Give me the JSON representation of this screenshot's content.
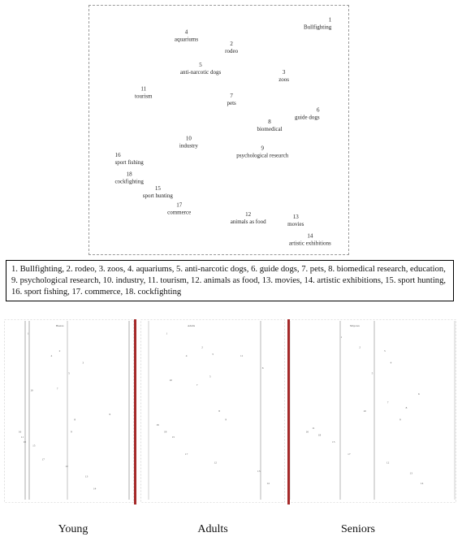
{
  "main_plot": {
    "points": [
      {
        "num": "1",
        "label": "Bullfighting",
        "x": 0.97,
        "y": 0.96
      },
      {
        "num": "2",
        "label": "rodeo",
        "x": 0.55,
        "y": 0.86
      },
      {
        "num": "3",
        "label": "zoos",
        "x": 0.77,
        "y": 0.74
      },
      {
        "num": "4",
        "label": "aquariums",
        "x": 0.36,
        "y": 0.91
      },
      {
        "num": "5",
        "label": "anti-narcotic dogs",
        "x": 0.42,
        "y": 0.77
      },
      {
        "num": "6",
        "label": "guide dogs",
        "x": 0.92,
        "y": 0.58
      },
      {
        "num": "7",
        "label": "pets",
        "x": 0.55,
        "y": 0.64
      },
      {
        "num": "8",
        "label": "biomedical",
        "x": 0.71,
        "y": 0.53
      },
      {
        "num": "9",
        "label": "psychological research",
        "x": 0.68,
        "y": 0.42
      },
      {
        "num": "10",
        "label": "industry",
        "x": 0.37,
        "y": 0.46
      },
      {
        "num": "11",
        "label": "tourism",
        "x": 0.18,
        "y": 0.67
      },
      {
        "num": "12",
        "label": "animals as food",
        "x": 0.62,
        "y": 0.14
      },
      {
        "num": "13",
        "label": "movies",
        "x": 0.82,
        "y": 0.13
      },
      {
        "num": "14",
        "label": "artistic exhibitions",
        "x": 0.88,
        "y": 0.05
      },
      {
        "num": "15",
        "label": "sport hunting",
        "x": 0.24,
        "y": 0.25
      },
      {
        "num": "16",
        "label": "sport fishing",
        "x": 0.06,
        "y": 0.39
      },
      {
        "num": "17",
        "label": "commerce",
        "x": 0.33,
        "y": 0.18
      },
      {
        "num": "18",
        "label": "cockfighting",
        "x": 0.12,
        "y": 0.31
      }
    ]
  },
  "legend_text": "1. Bullfighting, 2. rodeo, 3. zoos, 4. aquariums, 5. anti-narcotic dogs, 6. guide dogs, 7. pets, 8. biomedical research, education, 9. psychological research, 10. industry, 11. tourism, 12. animals as food, 13. movies, 14.  artistic exhibitions, 15. sport hunting, 16. sport fishing, 17. commerce, 18. cockfighting",
  "panels": [
    {
      "caption": "Young",
      "header": "Bueres",
      "points": [
        {
          "n": "1",
          "x": 0.15,
          "y": 0.95
        },
        {
          "n": "2",
          "x": 0.42,
          "y": 0.85
        },
        {
          "n": "3",
          "x": 0.62,
          "y": 0.78
        },
        {
          "n": "4",
          "x": 0.35,
          "y": 0.82
        },
        {
          "n": "5",
          "x": 0.5,
          "y": 0.72
        },
        {
          "n": "6",
          "x": 0.85,
          "y": 0.48
        },
        {
          "n": "7",
          "x": 0.4,
          "y": 0.63
        },
        {
          "n": "8",
          "x": 0.55,
          "y": 0.45
        },
        {
          "n": "9",
          "x": 0.52,
          "y": 0.38
        },
        {
          "n": "10",
          "x": 0.18,
          "y": 0.62
        },
        {
          "n": "11",
          "x": 0.1,
          "y": 0.35
        },
        {
          "n": "12",
          "x": 0.48,
          "y": 0.18
        },
        {
          "n": "13",
          "x": 0.65,
          "y": 0.12
        },
        {
          "n": "14",
          "x": 0.72,
          "y": 0.05
        },
        {
          "n": "15",
          "x": 0.2,
          "y": 0.3
        },
        {
          "n": "16",
          "x": 0.08,
          "y": 0.38
        },
        {
          "n": "17",
          "x": 0.28,
          "y": 0.22
        },
        {
          "n": "18",
          "x": 0.12,
          "y": 0.32
        }
      ]
    },
    {
      "caption": "Adults",
      "header": "Adults",
      "points": [
        {
          "n": "1",
          "x": 0.15,
          "y": 0.95
        },
        {
          "n": "2",
          "x": 0.42,
          "y": 0.87
        },
        {
          "n": "3",
          "x": 0.5,
          "y": 0.83
        },
        {
          "n": "4",
          "x": 0.3,
          "y": 0.82
        },
        {
          "n": "5",
          "x": 0.48,
          "y": 0.7
        },
        {
          "n": "6",
          "x": 0.88,
          "y": 0.75
        },
        {
          "n": "7",
          "x": 0.38,
          "y": 0.65
        },
        {
          "n": "8",
          "x": 0.55,
          "y": 0.5
        },
        {
          "n": "9",
          "x": 0.6,
          "y": 0.45
        },
        {
          "n": "10",
          "x": 0.18,
          "y": 0.68
        },
        {
          "n": "11",
          "x": 0.72,
          "y": 0.82
        },
        {
          "n": "12",
          "x": 0.52,
          "y": 0.2
        },
        {
          "n": "13",
          "x": 0.85,
          "y": 0.15
        },
        {
          "n": "14",
          "x": 0.92,
          "y": 0.08
        },
        {
          "n": "15",
          "x": 0.2,
          "y": 0.35
        },
        {
          "n": "16",
          "x": 0.08,
          "y": 0.42
        },
        {
          "n": "17",
          "x": 0.3,
          "y": 0.25
        },
        {
          "n": "18",
          "x": 0.14,
          "y": 0.38
        }
      ]
    },
    {
      "caption": "Seniors",
      "header": "Mayores",
      "points": [
        {
          "n": "1",
          "x": 0.3,
          "y": 0.93
        },
        {
          "n": "2",
          "x": 0.42,
          "y": 0.87
        },
        {
          "n": "3",
          "x": 0.58,
          "y": 0.85
        },
        {
          "n": "4",
          "x": 0.62,
          "y": 0.78
        },
        {
          "n": "5",
          "x": 0.5,
          "y": 0.72
        },
        {
          "n": "6",
          "x": 0.8,
          "y": 0.6
        },
        {
          "n": "7",
          "x": 0.6,
          "y": 0.55
        },
        {
          "n": "8",
          "x": 0.72,
          "y": 0.52
        },
        {
          "n": "9",
          "x": 0.68,
          "y": 0.45
        },
        {
          "n": "10",
          "x": 0.45,
          "y": 0.5
        },
        {
          "n": "11",
          "x": 0.12,
          "y": 0.4
        },
        {
          "n": "12",
          "x": 0.6,
          "y": 0.2
        },
        {
          "n": "13",
          "x": 0.75,
          "y": 0.14
        },
        {
          "n": "14",
          "x": 0.82,
          "y": 0.08
        },
        {
          "n": "15",
          "x": 0.25,
          "y": 0.32
        },
        {
          "n": "16",
          "x": 0.08,
          "y": 0.38
        },
        {
          "n": "17",
          "x": 0.35,
          "y": 0.25
        },
        {
          "n": "18",
          "x": 0.16,
          "y": 0.36
        }
      ]
    }
  ]
}
